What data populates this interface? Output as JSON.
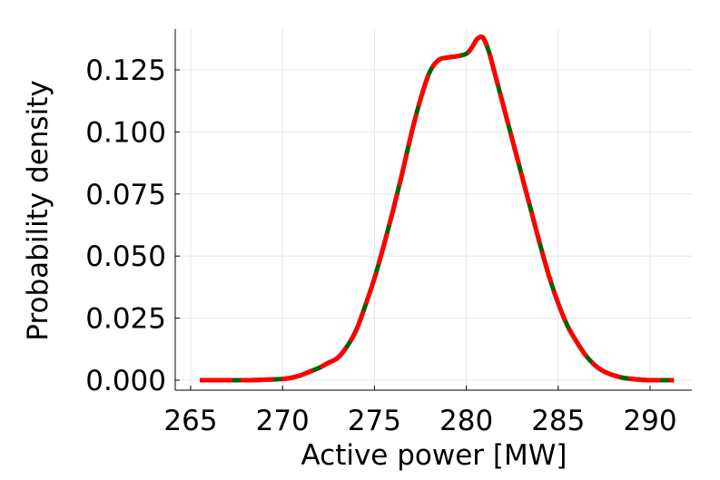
{
  "chart_data": {
    "type": "line",
    "title": "",
    "xlabel": "Active power [MW]",
    "ylabel": "Probability density",
    "xlim": [
      265,
      291.5
    ],
    "ylim": [
      0,
      0.138
    ],
    "xticks": [
      265,
      270,
      275,
      280,
      285,
      290
    ],
    "xtick_labels": [
      "265",
      "270",
      "275",
      "280",
      "285",
      "290"
    ],
    "yticks": [
      0,
      0.025,
      0.05,
      0.075,
      0.1,
      0.125
    ],
    "ytick_labels": [
      "0.000",
      "0.025",
      "0.050",
      "0.075",
      "0.100",
      "0.125"
    ],
    "grid": true,
    "legend": "none",
    "series": [
      {
        "color": "#006400",
        "style": "solid",
        "x": [
          265.5,
          266,
          267,
          268,
          269,
          270,
          270.5,
          271,
          271.5,
          272,
          272.5,
          273,
          273.5,
          274,
          274.5,
          275,
          275.5,
          276,
          276.5,
          277,
          277.5,
          278,
          278.5,
          279,
          279.5,
          280,
          280.3,
          280.6,
          280.9,
          281.2,
          281.5,
          282,
          282.5,
          283,
          283.5,
          284,
          284.5,
          285,
          285.5,
          286,
          286.5,
          287,
          287.5,
          288,
          288.5,
          289,
          289.5,
          290,
          290.5,
          291,
          291.3
        ],
        "y": [
          0.0,
          0.0,
          0.0,
          0.0,
          0.0002,
          0.0005,
          0.001,
          0.002,
          0.0035,
          0.005,
          0.007,
          0.009,
          0.0135,
          0.02,
          0.03,
          0.041,
          0.054,
          0.068,
          0.083,
          0.099,
          0.113,
          0.124,
          0.129,
          0.13,
          0.1305,
          0.1315,
          0.134,
          0.1375,
          0.138,
          0.133,
          0.125,
          0.111,
          0.097,
          0.083,
          0.069,
          0.055,
          0.042,
          0.031,
          0.022,
          0.0155,
          0.01,
          0.006,
          0.0035,
          0.002,
          0.001,
          0.0005,
          0.0002,
          0.0,
          0.0,
          0.0,
          0.0
        ]
      },
      {
        "color": "#ff0000",
        "style": "dashed",
        "x": [
          265.5,
          266,
          267,
          268,
          269,
          270,
          270.5,
          271,
          271.5,
          272,
          272.5,
          273,
          273.5,
          274,
          274.5,
          275,
          275.5,
          276,
          276.5,
          277,
          277.5,
          278,
          278.5,
          279,
          279.5,
          280,
          280.3,
          280.6,
          280.9,
          281.2,
          281.5,
          282,
          282.5,
          283,
          283.5,
          284,
          284.5,
          285,
          285.5,
          286,
          286.5,
          287,
          287.5,
          288,
          288.5,
          289,
          289.5,
          290,
          290.5,
          291,
          291.3
        ],
        "y": [
          0.0,
          0.0,
          0.0,
          0.0,
          0.0002,
          0.0005,
          0.001,
          0.002,
          0.0035,
          0.005,
          0.007,
          0.009,
          0.0135,
          0.02,
          0.03,
          0.041,
          0.054,
          0.068,
          0.083,
          0.099,
          0.113,
          0.124,
          0.129,
          0.13,
          0.1305,
          0.1315,
          0.134,
          0.1375,
          0.138,
          0.133,
          0.125,
          0.111,
          0.097,
          0.083,
          0.069,
          0.055,
          0.042,
          0.031,
          0.022,
          0.0155,
          0.01,
          0.006,
          0.0035,
          0.002,
          0.001,
          0.0005,
          0.0002,
          0.0,
          0.0,
          0.0,
          0.0
        ]
      }
    ]
  }
}
